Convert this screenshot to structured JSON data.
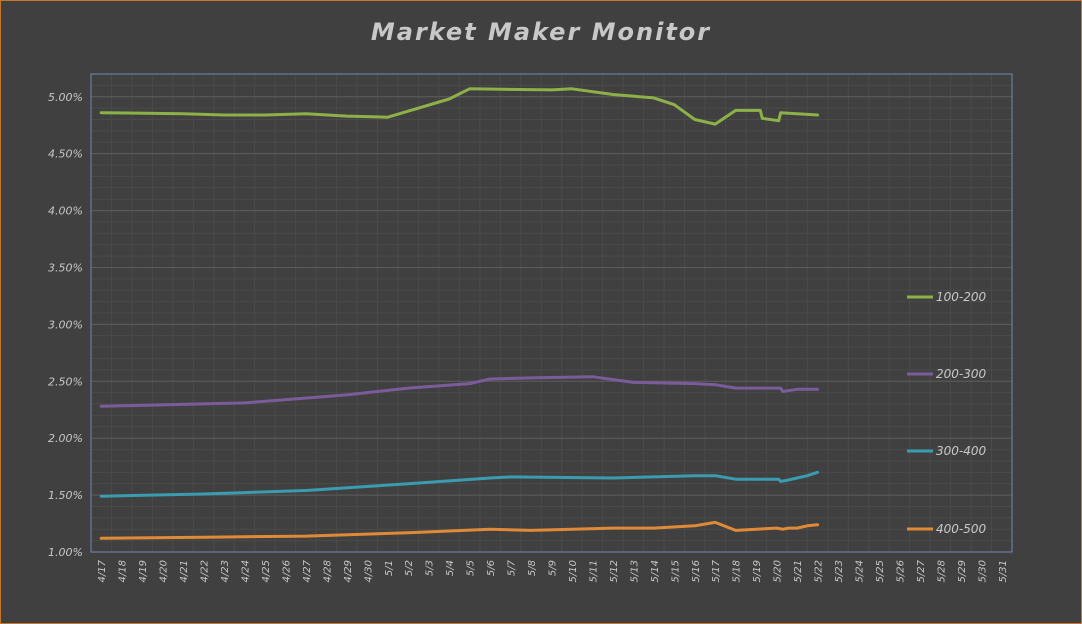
{
  "chart_data": {
    "type": "line",
    "title": "Market Maker Monitor",
    "xlabel": "",
    "ylabel": "",
    "ylim": [
      0.01,
      0.052
    ],
    "yticks": [
      "1.00%",
      "1.50%",
      "2.00%",
      "2.50%",
      "3.00%",
      "3.50%",
      "4.00%",
      "4.50%",
      "5.00%"
    ],
    "ytick_values": [
      0.01,
      0.015,
      0.02,
      0.025,
      0.03,
      0.035,
      0.04,
      0.045,
      0.05
    ],
    "categories": [
      "4/17",
      "4/18",
      "4/19",
      "4/20",
      "4/21",
      "4/22",
      "4/23",
      "4/24",
      "4/25",
      "4/26",
      "4/27",
      "4/28",
      "4/29",
      "4/30",
      "5/1",
      "5/2",
      "5/3",
      "5/4",
      "5/5",
      "5/6",
      "5/7",
      "5/8",
      "5/9",
      "5/10",
      "5/11",
      "5/12",
      "5/13",
      "5/14",
      "5/15",
      "5/16",
      "5/17",
      "5/18",
      "5/19",
      "5/20",
      "5/21",
      "5/22",
      "5/23",
      "5/24",
      "5/25",
      "5/26",
      "5/27",
      "5/28",
      "5/29",
      "5/30",
      "5/31"
    ],
    "grid": true,
    "legend": "right",
    "series": [
      {
        "name": "100-200",
        "color": "#8db048",
        "points": [
          [
            0,
            0.0486
          ],
          [
            4,
            0.0485
          ],
          [
            6,
            0.0484
          ],
          [
            8,
            0.0484
          ],
          [
            10,
            0.0485
          ],
          [
            12,
            0.0483
          ],
          [
            14,
            0.0482
          ],
          [
            17,
            0.0498
          ],
          [
            18,
            0.0507
          ],
          [
            22,
            0.0506
          ],
          [
            23,
            0.0507
          ],
          [
            25,
            0.0502
          ],
          [
            27,
            0.0499
          ],
          [
            28,
            0.0493
          ],
          [
            29,
            0.048
          ],
          [
            30,
            0.0476
          ],
          [
            31,
            0.0488
          ],
          [
            32.2,
            0.0488
          ],
          [
            32.3,
            0.0481
          ],
          [
            33.1,
            0.0479
          ],
          [
            33.2,
            0.0486
          ],
          [
            34,
            0.0485
          ],
          [
            35,
            0.0484
          ]
        ]
      },
      {
        "name": "200-300",
        "color": "#7b5c9a",
        "points": [
          [
            0,
            0.0228
          ],
          [
            7,
            0.0231
          ],
          [
            12,
            0.0238
          ],
          [
            15,
            0.0244
          ],
          [
            18,
            0.0248
          ],
          [
            19,
            0.0252
          ],
          [
            21,
            0.0253
          ],
          [
            24,
            0.0254
          ],
          [
            26,
            0.0249
          ],
          [
            29,
            0.0248
          ],
          [
            30,
            0.0247
          ],
          [
            31,
            0.0244
          ],
          [
            33.2,
            0.0244
          ],
          [
            33.3,
            0.0241
          ],
          [
            34,
            0.0243
          ],
          [
            35,
            0.0243
          ]
        ]
      },
      {
        "name": "300-400",
        "color": "#3a9cb0",
        "points": [
          [
            0,
            0.0149
          ],
          [
            5,
            0.0151
          ],
          [
            10,
            0.0154
          ],
          [
            15,
            0.016
          ],
          [
            19,
            0.0165
          ],
          [
            20,
            0.0166
          ],
          [
            25,
            0.0165
          ],
          [
            29,
            0.0167
          ],
          [
            30,
            0.0167
          ],
          [
            31,
            0.0164
          ],
          [
            33.1,
            0.0164
          ],
          [
            33.2,
            0.0162
          ],
          [
            33.5,
            0.0163
          ],
          [
            34,
            0.0165
          ],
          [
            34.5,
            0.0167
          ],
          [
            35,
            0.017
          ]
        ]
      },
      {
        "name": "400-500",
        "color": "#e08a38",
        "points": [
          [
            0,
            0.0112
          ],
          [
            5,
            0.0113
          ],
          [
            10,
            0.0114
          ],
          [
            15,
            0.0117
          ],
          [
            19,
            0.012
          ],
          [
            21,
            0.0119
          ],
          [
            25,
            0.0121
          ],
          [
            27,
            0.0121
          ],
          [
            29,
            0.0123
          ],
          [
            30,
            0.0126
          ],
          [
            31,
            0.0119
          ],
          [
            33,
            0.0121
          ],
          [
            33.3,
            0.012
          ],
          [
            33.6,
            0.0121
          ],
          [
            34,
            0.0121
          ],
          [
            34.5,
            0.0123
          ],
          [
            35,
            0.0124
          ]
        ]
      }
    ]
  }
}
